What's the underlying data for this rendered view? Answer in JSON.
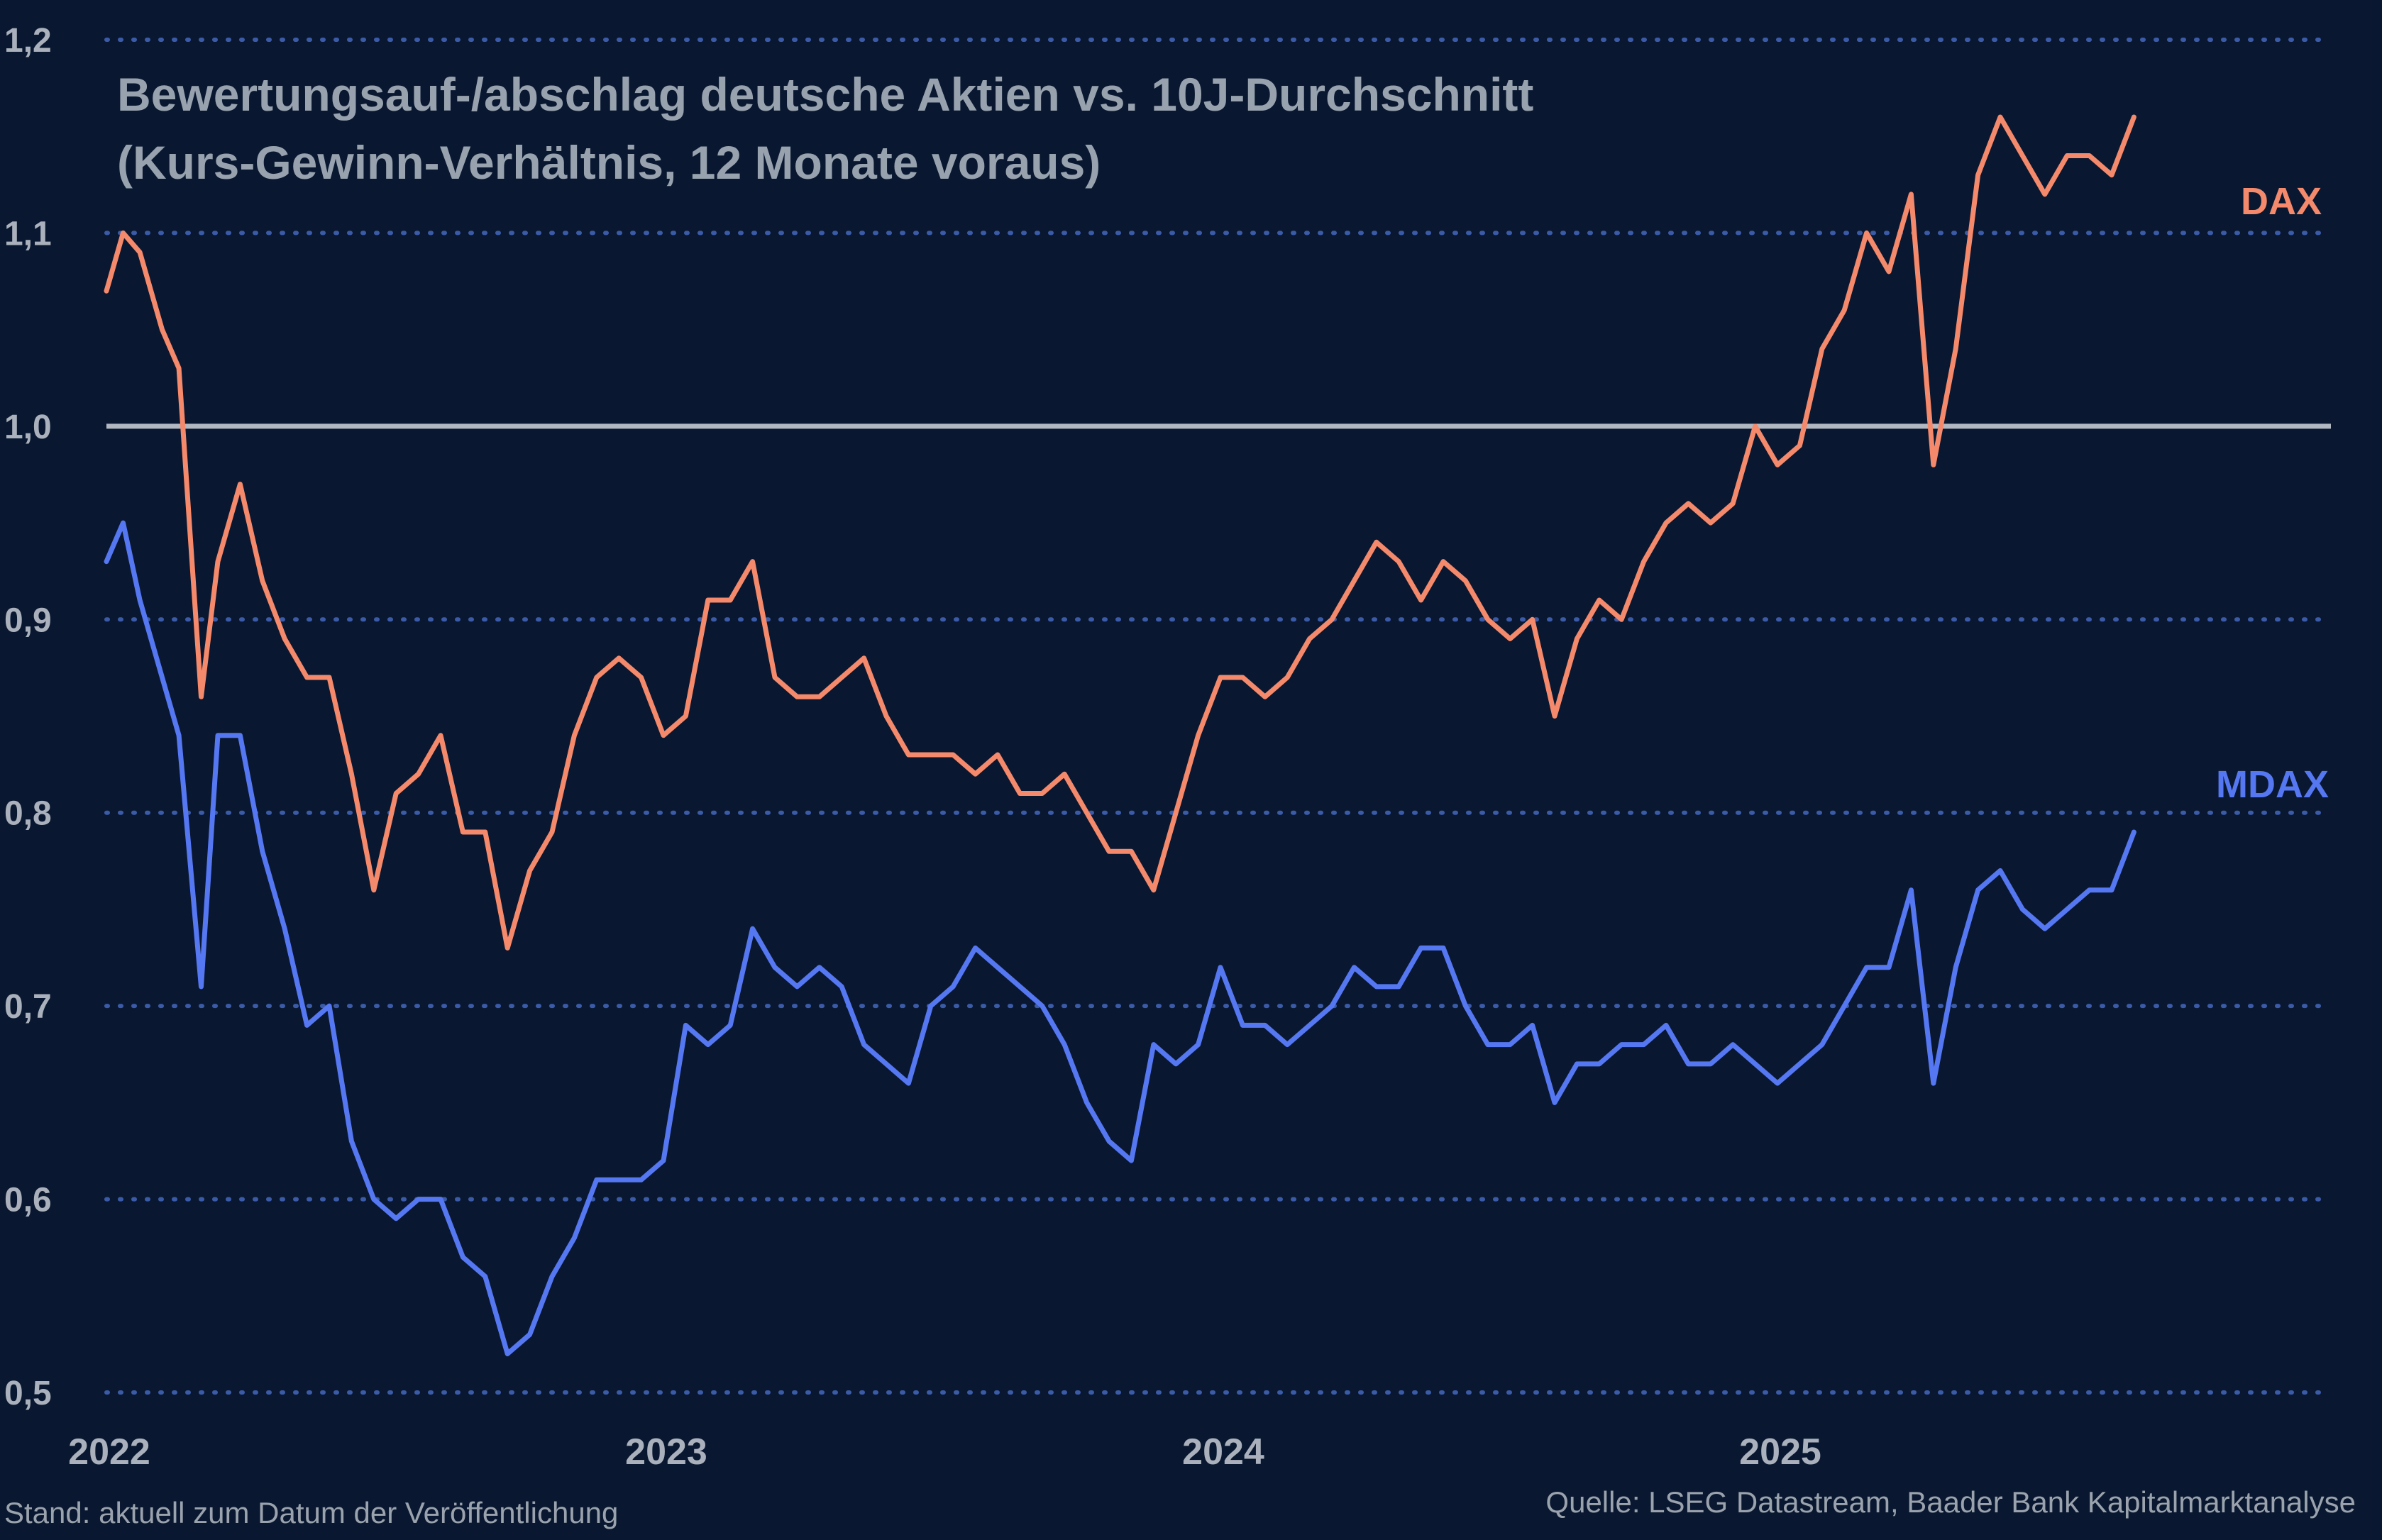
{
  "chart_data": {
    "type": "line",
    "title": "Bewertungsauf-/abschlag deutsche Aktien vs. 10J-Durchschnitt",
    "subtitle": "(Kurs-Gewinn-Verhältnis, 12 Monate voraus)",
    "ylim": [
      0.5,
      1.2
    ],
    "yticks": [
      0.5,
      0.6,
      0.7,
      0.8,
      0.9,
      1.0,
      1.1,
      1.2
    ],
    "ytick_labels": [
      "0,5",
      "0,6",
      "0,7",
      "0,8",
      "0,9",
      "1,0",
      "1,1",
      "1,2"
    ],
    "xlim": [
      2022.0,
      2026.0
    ],
    "xticks": [
      2022,
      2023,
      2024,
      2025
    ],
    "xtick_labels": [
      "2022",
      "2023",
      "2024",
      "2025"
    ],
    "reference_line": 1.0,
    "grid": "horizontal dotted",
    "series": [
      {
        "name": "DAX",
        "label": "DAX",
        "color": "#f4896b",
        "x": [
          2022.0,
          2022.03,
          2022.06,
          2022.1,
          2022.13,
          2022.17,
          2022.2,
          2022.24,
          2022.28,
          2022.32,
          2022.36,
          2022.4,
          2022.44,
          2022.48,
          2022.52,
          2022.56,
          2022.6,
          2022.64,
          2022.68,
          2022.72,
          2022.76,
          2022.8,
          2022.84,
          2022.88,
          2022.92,
          2022.96,
          2023.0,
          2023.04,
          2023.08,
          2023.12,
          2023.16,
          2023.2,
          2023.24,
          2023.28,
          2023.32,
          2023.36,
          2023.4,
          2023.44,
          2023.48,
          2023.52,
          2023.56,
          2023.6,
          2023.64,
          2023.68,
          2023.72,
          2023.76,
          2023.8,
          2023.84,
          2023.88,
          2023.92,
          2023.96,
          2024.0,
          2024.04,
          2024.08,
          2024.12,
          2024.16,
          2024.2,
          2024.24,
          2024.28,
          2024.32,
          2024.36,
          2024.4,
          2024.44,
          2024.48,
          2024.52,
          2024.56,
          2024.6,
          2024.64,
          2024.68,
          2024.72,
          2024.76,
          2024.8,
          2024.84,
          2024.88,
          2024.92,
          2024.96,
          2025.0,
          2025.04,
          2025.08,
          2025.12,
          2025.16,
          2025.2,
          2025.24,
          2025.28,
          2025.32,
          2025.36,
          2025.4,
          2025.44,
          2025.48,
          2025.52,
          2025.56,
          2025.6,
          2025.64
        ],
        "values": [
          1.07,
          1.1,
          1.09,
          1.05,
          1.03,
          0.86,
          0.93,
          0.97,
          0.92,
          0.89,
          0.87,
          0.87,
          0.82,
          0.76,
          0.81,
          0.82,
          0.84,
          0.79,
          0.79,
          0.73,
          0.77,
          0.79,
          0.84,
          0.87,
          0.88,
          0.87,
          0.84,
          0.85,
          0.91,
          0.91,
          0.93,
          0.87,
          0.86,
          0.86,
          0.87,
          0.88,
          0.85,
          0.83,
          0.83,
          0.83,
          0.82,
          0.83,
          0.81,
          0.81,
          0.82,
          0.8,
          0.78,
          0.78,
          0.76,
          0.8,
          0.84,
          0.87,
          0.87,
          0.86,
          0.87,
          0.89,
          0.9,
          0.92,
          0.94,
          0.93,
          0.91,
          0.93,
          0.92,
          0.9,
          0.89,
          0.9,
          0.85,
          0.89,
          0.91,
          0.9,
          0.93,
          0.95,
          0.96,
          0.95,
          0.96,
          1.0,
          0.98,
          0.99,
          1.04,
          1.06,
          1.1,
          1.08,
          1.12,
          0.98,
          1.04,
          1.13,
          1.16,
          1.14,
          1.12,
          1.14,
          1.14,
          1.13,
          1.16
        ]
      },
      {
        "name": "MDAX",
        "label": "MDAX",
        "color": "#5577f2",
        "x": [
          2022.0,
          2022.03,
          2022.06,
          2022.1,
          2022.13,
          2022.17,
          2022.2,
          2022.24,
          2022.28,
          2022.32,
          2022.36,
          2022.4,
          2022.44,
          2022.48,
          2022.52,
          2022.56,
          2022.6,
          2022.64,
          2022.68,
          2022.72,
          2022.76,
          2022.8,
          2022.84,
          2022.88,
          2022.92,
          2022.96,
          2023.0,
          2023.04,
          2023.08,
          2023.12,
          2023.16,
          2023.2,
          2023.24,
          2023.28,
          2023.32,
          2023.36,
          2023.4,
          2023.44,
          2023.48,
          2023.52,
          2023.56,
          2023.6,
          2023.64,
          2023.68,
          2023.72,
          2023.76,
          2023.8,
          2023.84,
          2023.88,
          2023.92,
          2023.96,
          2024.0,
          2024.04,
          2024.08,
          2024.12,
          2024.16,
          2024.2,
          2024.24,
          2024.28,
          2024.32,
          2024.36,
          2024.4,
          2024.44,
          2024.48,
          2024.52,
          2024.56,
          2024.6,
          2024.64,
          2024.68,
          2024.72,
          2024.76,
          2024.8,
          2024.84,
          2024.88,
          2024.92,
          2024.96,
          2025.0,
          2025.04,
          2025.08,
          2025.12,
          2025.16,
          2025.2,
          2025.24,
          2025.28,
          2025.32,
          2025.36,
          2025.4,
          2025.44,
          2025.48,
          2025.52,
          2025.56,
          2025.6,
          2025.64
        ],
        "values": [
          0.93,
          0.95,
          0.91,
          0.87,
          0.84,
          0.71,
          0.84,
          0.84,
          0.78,
          0.74,
          0.69,
          0.7,
          0.63,
          0.6,
          0.59,
          0.6,
          0.6,
          0.57,
          0.56,
          0.52,
          0.53,
          0.56,
          0.58,
          0.61,
          0.61,
          0.61,
          0.62,
          0.69,
          0.68,
          0.69,
          0.74,
          0.72,
          0.71,
          0.72,
          0.71,
          0.68,
          0.67,
          0.66,
          0.7,
          0.71,
          0.73,
          0.72,
          0.71,
          0.7,
          0.68,
          0.65,
          0.63,
          0.62,
          0.68,
          0.67,
          0.68,
          0.72,
          0.69,
          0.69,
          0.68,
          0.69,
          0.7,
          0.72,
          0.71,
          0.71,
          0.73,
          0.73,
          0.7,
          0.68,
          0.68,
          0.69,
          0.65,
          0.67,
          0.67,
          0.68,
          0.68,
          0.69,
          0.67,
          0.67,
          0.68,
          0.67,
          0.66,
          0.67,
          0.68,
          0.7,
          0.72,
          0.72,
          0.76,
          0.66,
          0.72,
          0.76,
          0.77,
          0.75,
          0.74,
          0.75,
          0.76,
          0.76,
          0.79
        ]
      }
    ]
  },
  "footer": {
    "left": "Stand: aktuell zum Datum der Veröffentlichung",
    "right": "Quelle: LSEG Datastream, Baader Bank Kapitalmarktanalyse"
  },
  "colors": {
    "background": "#091830",
    "gridline": "#3b5ba8",
    "reference_line": "#b2b8c2",
    "text": "#98a2af"
  }
}
